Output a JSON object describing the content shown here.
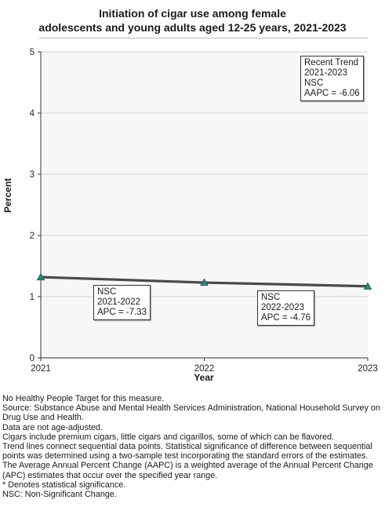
{
  "chart_data": {
    "type": "line",
    "title": "Initiation of cigar use among female adolescents and young adults aged 12-25 years, 2021-2023",
    "title_lines": [
      "Initiation of cigar use among female",
      "adolescents and young adults aged 12-25 years, 2021-2023"
    ],
    "xlabel": "Year",
    "ylabel": "Percent",
    "x": [
      "2021",
      "2022",
      "2023"
    ],
    "values": [
      1.32,
      1.23,
      1.17
    ],
    "ylim": [
      0,
      5
    ],
    "yticks": [
      "0",
      "1",
      "2",
      "3",
      "4",
      "5"
    ],
    "grid": true,
    "line_color": "#4a4a4a",
    "marker_color": "#2e8b7a",
    "annotations": {
      "trend": [
        "Recent Trend",
        "2021-2023",
        "NSC",
        "AAPC = -6.06"
      ],
      "seg1": [
        "NSC",
        "2021-2022",
        "APC = -7.33"
      ],
      "seg2": [
        "NSC",
        "2022-2023",
        "APC = -4.76"
      ]
    }
  },
  "notes": [
    "No Healthy People Target for this measure.",
    "Source: Substance Abuse and Mental Health Services Administration, National Household Survey on Drug Use and Health.",
    "Data are not age-adjusted.",
    "Cigars include premium cigars, little cigars and cigarillos, some of which can be flavored.",
    "Trend lines connect sequential data points. Statistical significance of difference between sequential points was determined using a two-sample test incorporating the standard errors of the estimates.",
    "The Average Annual Percent Change (AAPC) is a weighted average of the Annual Percent Change (APC) estimates that occur over the specified year range.",
    "* Denotes statistical significance.",
    "NSC: Non-Significant Change."
  ]
}
